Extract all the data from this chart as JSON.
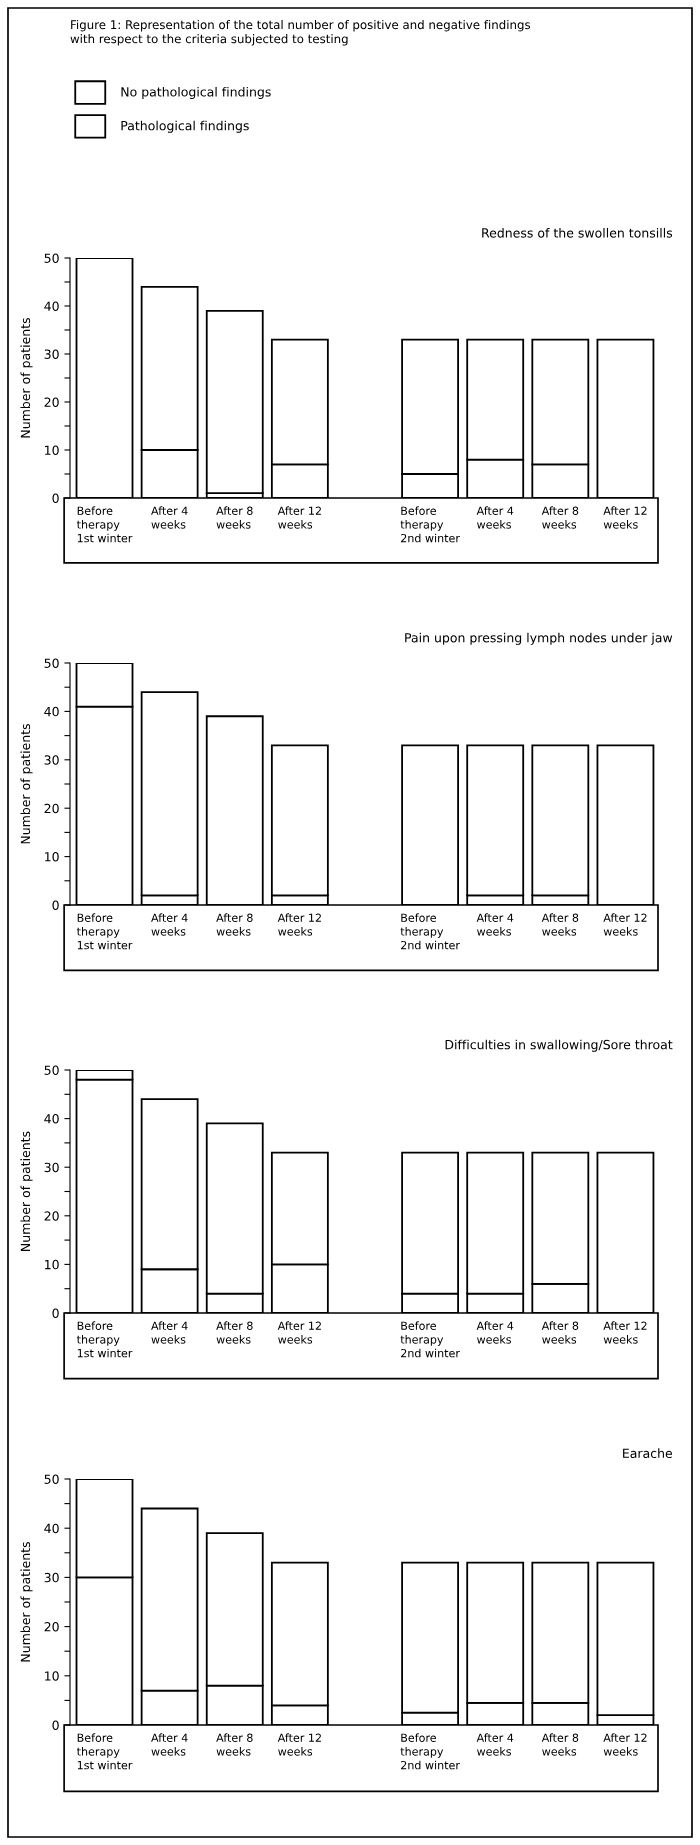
{
  "chart_data": [
    {
      "type": "bar",
      "stacked": true,
      "title": "Redness of the swollen tonsills",
      "ylabel": "Number of patients",
      "annotations": [
        "Figure 1: Representation of the total number of positive and negative findings\nwith respect to the criteria subjected to testing"
      ],
      "categories": [
        "Before\ntherapy\n1st winter",
        "After 4\nweeks",
        "After 8\nweeks",
        "After 12\nweeks",
        null,
        "Before\ntherapy\n2nd winter",
        "After 4\nweeks",
        "After 8\nweeks",
        "After 12\nweeks"
      ],
      "series": [
        {
          "name": "Pathological findings",
          "color": "#ffffff",
          "values": [
            50,
            10,
            1,
            7,
            null,
            5,
            8,
            7,
            0
          ]
        },
        {
          "name": "No pathological findings",
          "color": "#ffffff",
          "values": [
            0,
            34,
            38,
            26,
            null,
            28,
            25,
            26,
            33
          ]
        }
      ],
      "ylim": [
        0,
        50
      ],
      "yticks": [
        0,
        {
          "value": 5,
          "label": null
        },
        10,
        {
          "value": 15,
          "label": null
        },
        20,
        {
          "value": 25,
          "label": null
        },
        30,
        {
          "value": 35,
          "label": null
        },
        40,
        {
          "value": 45,
          "label": null
        },
        50
      ],
      "legend": "top left"
    },
    {
      "type": "bar",
      "stacked": true,
      "title": "Pain upon pressing lymph nodes under jaw",
      "ylabel": "Number of patients",
      "categories": [
        "Before\ntherapy\n1st winter",
        "After 4\nweeks",
        "After 8\nweeks",
        "After 12\nweeks",
        null,
        "Before\ntherapy\n2nd winter",
        "After 4\nweeks",
        "After 8\nweeks",
        "After 12\nweeks"
      ],
      "series": [
        {
          "color": "#ffffff",
          "values": [
            41,
            2,
            0,
            2,
            null,
            0,
            2,
            2,
            0
          ]
        },
        {
          "color": "#ffffff",
          "values": [
            9,
            42,
            39,
            31,
            null,
            33,
            31,
            31,
            33
          ]
        }
      ],
      "ylim": [
        0,
        50
      ],
      "yticks": [
        0,
        {
          "value": 5,
          "label": null
        },
        10,
        {
          "value": 15,
          "label": null
        },
        20,
        {
          "value": 25,
          "label": null
        },
        30,
        {
          "value": 35,
          "label": null
        },
        40,
        {
          "value": 45,
          "label": null
        },
        50
      ]
    },
    {
      "type": "bar",
      "stacked": true,
      "title": "Difficulties in swallowing/Sore throat",
      "ylabel": "Number of patients",
      "categories": [
        "Before\ntherapy\n1st winter",
        "After 4\nweeks",
        "After 8\nweeks",
        "After 12\nweeks",
        null,
        "Before\ntherapy\n2nd winter",
        "After 4\nweeks",
        "After 8\nweeks",
        "After 12\nweeks"
      ],
      "series": [
        {
          "color": "#ffffff",
          "values": [
            48,
            9,
            4,
            10,
            null,
            4,
            4,
            6,
            0
          ]
        },
        {
          "color": "#ffffff",
          "values": [
            2,
            35,
            35,
            23,
            null,
            29,
            29,
            27,
            33
          ]
        }
      ],
      "ylim": [
        0,
        50
      ],
      "yticks": [
        0,
        {
          "value": 5,
          "label": null
        },
        10,
        {
          "value": 15,
          "label": null
        },
        20,
        {
          "value": 25,
          "label": null
        },
        30,
        {
          "value": 35,
          "label": null
        },
        40,
        {
          "value": 45,
          "label": null
        },
        50
      ]
    },
    {
      "type": "bar",
      "stacked": true,
      "title": "Earache",
      "ylabel": "Number of patients",
      "categories": [
        "Before\ntherapy\n1st winter",
        "After 4\nweeks",
        "After 8\nweeks",
        "After 12\nweeks",
        null,
        "Before\ntherapy\n2nd winter",
        "After 4\nweeks",
        "After 8\nweeks",
        "After 12\nweeks"
      ],
      "series": [
        {
          "color": "#ffffff",
          "values": [
            30,
            7,
            8,
            4,
            null,
            2.5,
            4.5,
            4.5,
            2
          ]
        },
        {
          "color": "#ffffff",
          "values": [
            20,
            37,
            31,
            29,
            null,
            30.5,
            28.5,
            28.5,
            31
          ]
        }
      ],
      "ylim": [
        0,
        50
      ],
      "yticks": [
        0,
        {
          "value": 5,
          "label": null
        },
        10,
        {
          "value": 15,
          "label": null
        },
        20,
        {
          "value": 25,
          "label": null
        },
        30,
        {
          "value": 35,
          "label": null
        },
        40,
        {
          "value": 45,
          "label": null
        },
        50
      ]
    }
  ]
}
